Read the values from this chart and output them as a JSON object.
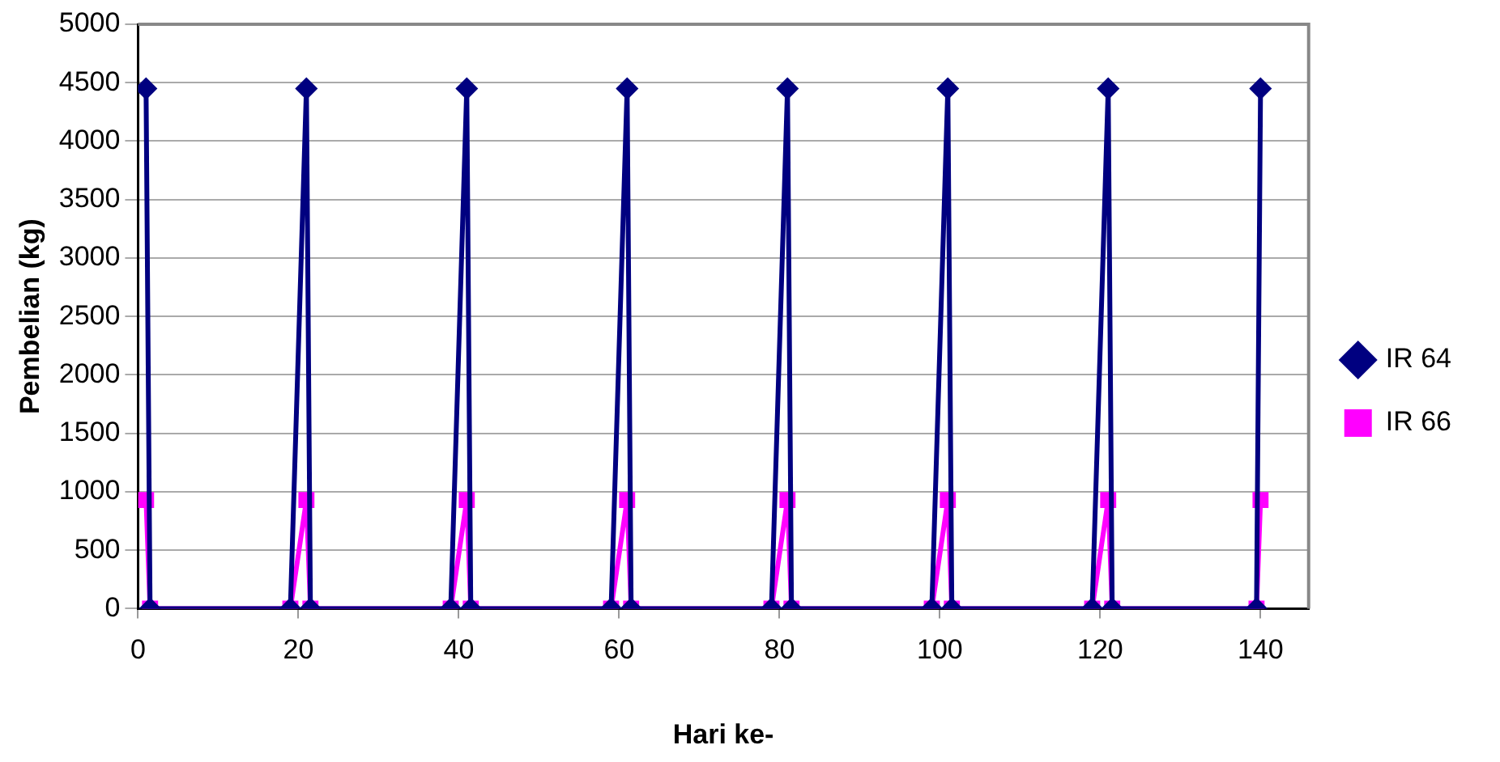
{
  "chart_data": {
    "type": "line",
    "xlabel": "Hari ke-",
    "ylabel": "Pembelian (kg)",
    "x": [
      1,
      1.5,
      19,
      21,
      21.5,
      39,
      41,
      41.5,
      59,
      61,
      61.5,
      79,
      81,
      81.5,
      99,
      101,
      101.5,
      119,
      121,
      121.5,
      139.5,
      140
    ],
    "series": [
      {
        "name": "IR 64",
        "color": "#000080",
        "marker": "diamond",
        "values": [
          4450,
          0,
          0,
          4450,
          0,
          0,
          4450,
          0,
          0,
          4450,
          0,
          0,
          4450,
          0,
          0,
          4450,
          0,
          0,
          4450,
          0,
          0,
          4450
        ]
      },
      {
        "name": "IR 66",
        "color": "#ff00ff",
        "marker": "square",
        "values": [
          930,
          0,
          0,
          930,
          0,
          0,
          930,
          0,
          0,
          930,
          0,
          0,
          930,
          0,
          0,
          930,
          0,
          0,
          930,
          0,
          0,
          930
        ]
      }
    ],
    "xlim": [
      0,
      146
    ],
    "xticks": [
      0,
      20,
      40,
      60,
      80,
      100,
      120,
      140
    ],
    "ylim": [
      0,
      5000
    ],
    "yticks": [
      0,
      500,
      1000,
      1500,
      2000,
      2500,
      3000,
      3500,
      4000,
      4500,
      5000
    ],
    "grid": "y",
    "legend": "right"
  }
}
